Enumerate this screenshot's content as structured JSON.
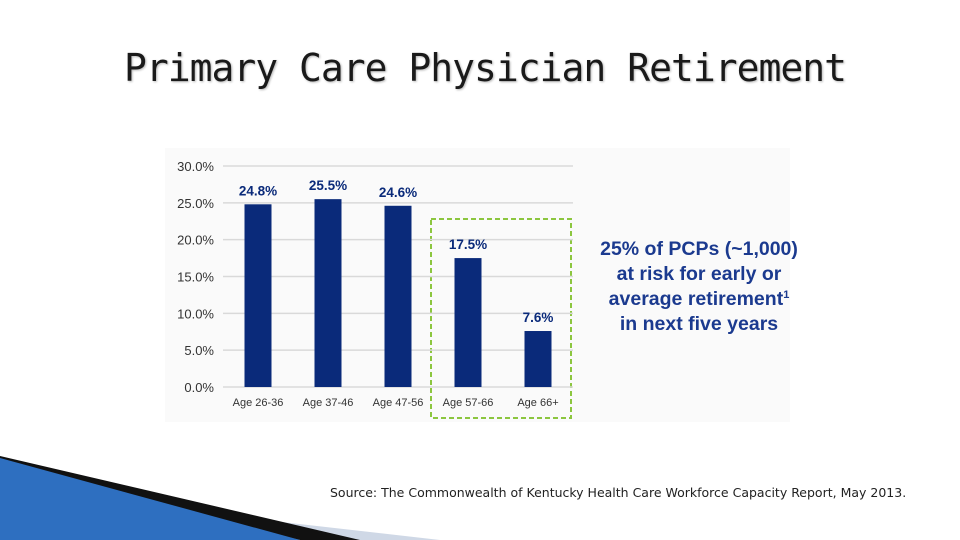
{
  "slide": {
    "title": "Primary Care Physician Retirement",
    "source": "Source: The Commonwealth of Kentucky Health Care Workforce Capacity Report, May 2013."
  },
  "callout": {
    "text_main": "25% of PCPs (~1,000) at risk for early or average retirement",
    "footnote_marker": "1",
    "text_tail": " in next five years"
  },
  "chart_data": {
    "type": "bar",
    "categories": [
      "Age 26-36",
      "Age 37-46",
      "Age 47-56",
      "Age 57-66",
      "Age 66+"
    ],
    "values": [
      24.8,
      25.5,
      24.6,
      17.5,
      7.6
    ],
    "value_labels": [
      "24.8%",
      "25.5%",
      "24.6%",
      "17.5%",
      "7.6%"
    ],
    "y_ticks": [
      "0.0%",
      "5.0%",
      "10.0%",
      "15.0%",
      "20.0%",
      "25.0%",
      "30.0%"
    ],
    "ylim": [
      0,
      30
    ],
    "grid": true,
    "highlight_categories": [
      "Age 57-66",
      "Age 66+"
    ],
    "colors": {
      "bar": "#0a2a7a",
      "grid": "#d9d9d9",
      "highlight_border": "#8cc63f",
      "label": "#333333"
    }
  },
  "decoration": {
    "colors": {
      "swoosh_blue": "#2e6fc0",
      "swoosh_light": "#cfd8e6",
      "swoosh_dark": "#111111"
    }
  }
}
